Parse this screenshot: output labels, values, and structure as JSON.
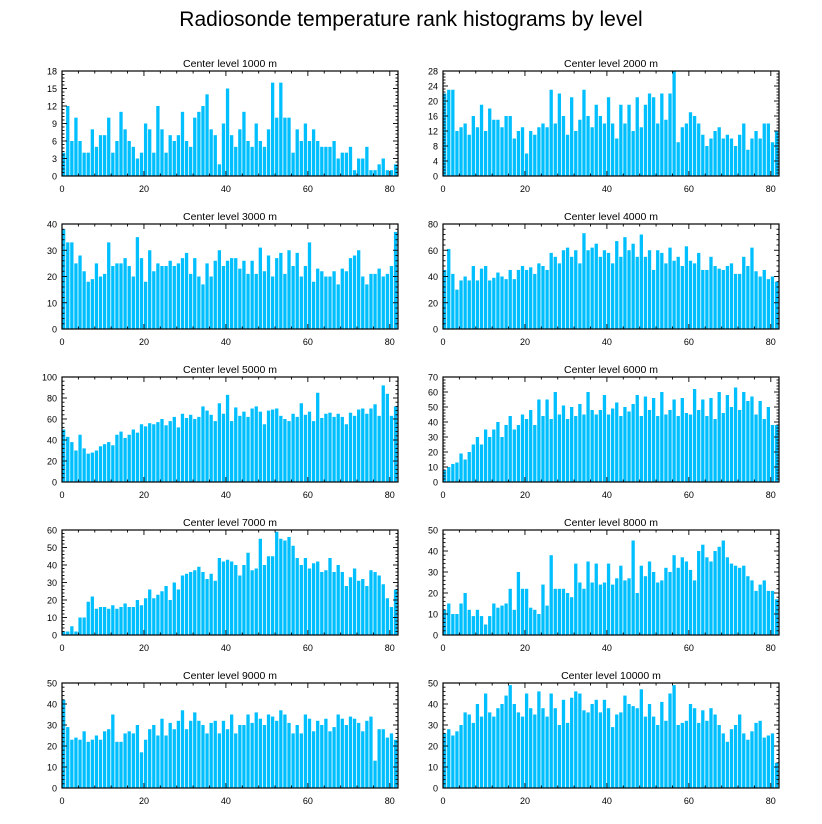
{
  "title": "Radiosonde temperature rank histograms by level",
  "bar_color": "#00bfff",
  "chart_data": [
    {
      "type": "bar",
      "title": "Center level 1000 m",
      "ylim": [
        0,
        18
      ],
      "yticks": [
        0,
        3,
        6,
        9,
        12,
        15,
        18
      ],
      "y_axis_side": "left",
      "xlim": [
        0,
        82
      ],
      "xticks": [
        0,
        20,
        40,
        60,
        80
      ],
      "values": [
        4,
        12,
        6,
        10,
        6,
        4,
        4,
        8,
        5,
        7,
        7,
        10,
        4,
        6,
        11,
        8,
        6,
        5,
        3,
        4,
        9,
        8,
        4,
        12,
        8,
        4,
        7,
        6,
        7,
        11,
        6,
        5,
        10,
        11,
        12,
        14,
        8,
        7,
        2,
        9,
        15,
        7,
        5,
        8,
        11,
        6,
        5,
        9,
        6,
        5,
        8,
        16,
        10,
        16,
        10,
        10,
        4,
        8,
        6,
        9,
        6,
        8,
        6,
        5,
        5,
        5,
        6,
        3,
        4,
        4,
        5,
        1,
        3,
        3,
        5,
        1,
        1,
        2,
        3,
        1,
        1,
        2
      ]
    },
    {
      "type": "bar",
      "title": "Center level 2000 m",
      "ylim": [
        0,
        28
      ],
      "yticks": [
        0,
        4,
        8,
        12,
        16,
        20,
        24,
        28
      ],
      "y_axis_side": "left",
      "xlim": [
        0,
        82
      ],
      "xticks": [
        0,
        20,
        40,
        60,
        80
      ],
      "values": [
        22,
        23,
        23,
        12,
        13,
        14,
        11,
        16,
        13,
        19,
        12,
        18,
        15,
        15,
        13,
        16,
        16,
        10,
        12,
        13,
        6,
        12,
        11,
        13,
        14,
        13,
        23,
        14,
        22,
        16,
        11,
        21,
        12,
        15,
        23,
        16,
        13,
        19,
        16,
        14,
        21,
        14,
        10,
        19,
        14,
        19,
        12,
        21,
        13,
        19,
        22,
        21,
        14,
        22,
        15,
        22,
        28,
        9,
        13,
        14,
        17,
        16,
        14,
        11,
        8,
        10,
        12,
        13,
        10,
        11,
        10,
        8,
        11,
        14,
        7,
        10,
        12,
        10,
        14,
        14,
        9,
        12
      ]
    },
    {
      "type": "bar",
      "title": "Center level 3000 m",
      "ylim": [
        0,
        40
      ],
      "yticks": [
        0,
        10,
        20,
        30,
        40
      ],
      "y_axis_side": "left",
      "xlim": [
        0,
        82
      ],
      "xticks": [
        0,
        20,
        40,
        60,
        80
      ],
      "values": [
        38,
        33,
        33,
        25,
        28,
        22,
        18,
        19,
        25,
        20,
        21,
        33,
        24,
        25,
        25,
        27,
        24,
        20,
        35,
        27,
        18,
        30,
        22,
        25,
        24,
        24,
        26,
        24,
        25,
        27,
        29,
        21,
        27,
        20,
        17,
        25,
        20,
        26,
        30,
        24,
        26,
        27,
        27,
        23,
        26,
        21,
        26,
        21,
        31,
        22,
        28,
        20,
        27,
        29,
        21,
        30,
        24,
        29,
        20,
        24,
        33,
        18,
        23,
        22,
        20,
        20,
        22,
        17,
        23,
        22,
        27,
        28,
        30,
        20,
        17,
        21,
        21,
        23,
        20,
        21,
        24,
        37
      ]
    },
    {
      "type": "bar",
      "title": "Center level 4000 m",
      "ylim": [
        0,
        80
      ],
      "yticks": [
        0,
        20,
        40,
        60,
        80
      ],
      "y_axis_side": "left",
      "xlim": [
        0,
        82
      ],
      "xticks": [
        0,
        20,
        40,
        60,
        80
      ],
      "values": [
        45,
        61,
        42,
        30,
        37,
        40,
        37,
        48,
        37,
        46,
        48,
        37,
        39,
        43,
        40,
        38,
        45,
        38,
        45,
        48,
        45,
        47,
        42,
        50,
        48,
        45,
        58,
        55,
        50,
        60,
        62,
        55,
        60,
        50,
        73,
        60,
        62,
        65,
        55,
        60,
        58,
        50,
        67,
        55,
        70,
        60,
        65,
        55,
        72,
        55,
        60,
        45,
        60,
        58,
        50,
        62,
        52,
        55,
        48,
        63,
        52,
        50,
        58,
        45,
        45,
        55,
        48,
        46,
        45,
        48,
        50,
        42,
        42,
        55,
        48,
        62,
        44,
        40,
        45,
        38,
        40,
        36
      ]
    },
    {
      "type": "bar",
      "title": "Center level 5000 m",
      "ylim": [
        0,
        100
      ],
      "yticks": [
        0,
        20,
        40,
        60,
        80,
        100
      ],
      "y_axis_side": "left",
      "xlim": [
        0,
        82
      ],
      "xticks": [
        0,
        20,
        40,
        60,
        80
      ],
      "values": [
        50,
        43,
        38,
        30,
        45,
        32,
        27,
        28,
        30,
        34,
        36,
        38,
        35,
        45,
        48,
        42,
        45,
        50,
        47,
        55,
        53,
        56,
        55,
        57,
        60,
        54,
        58,
        62,
        52,
        65,
        61,
        64,
        60,
        62,
        72,
        68,
        64,
        58,
        75,
        65,
        83,
        58,
        71,
        63,
        67,
        62,
        70,
        72,
        67,
        55,
        68,
        69,
        70,
        63,
        60,
        58,
        65,
        62,
        75,
        64,
        67,
        58,
        85,
        61,
        65,
        66,
        62,
        65,
        62,
        55,
        66,
        63,
        69,
        70,
        65,
        70,
        74,
        63,
        92,
        84,
        63,
        72
      ]
    },
    {
      "type": "bar",
      "title": "Center level 6000 m",
      "ylim": [
        0,
        70
      ],
      "yticks": [
        0,
        10,
        20,
        30,
        40,
        50,
        60,
        70
      ],
      "y_axis_side": "left",
      "xlim": [
        0,
        82
      ],
      "xticks": [
        0,
        20,
        40,
        60,
        80
      ],
      "values": [
        8,
        10,
        12,
        13,
        19,
        15,
        20,
        25,
        30,
        25,
        35,
        30,
        35,
        40,
        30,
        38,
        44,
        35,
        38,
        45,
        42,
        48,
        38,
        55,
        44,
        55,
        42,
        60,
        45,
        51,
        42,
        50,
        44,
        52,
        45,
        60,
        48,
        45,
        48,
        58,
        45,
        49,
        53,
        44,
        50,
        47,
        52,
        58,
        44,
        57,
        48,
        56,
        44,
        60,
        45,
        48,
        55,
        44,
        56,
        46,
        45,
        62,
        48,
        55,
        44,
        56,
        42,
        60,
        46,
        58,
        50,
        63,
        48,
        60,
        54,
        57,
        45,
        54,
        42,
        50,
        38,
        38
      ]
    },
    {
      "type": "bar",
      "title": "Center level 7000 m",
      "ylim": [
        0,
        60
      ],
      "yticks": [
        0,
        10,
        20,
        30,
        40,
        50,
        60
      ],
      "y_axis_side": "left",
      "xlim": [
        0,
        82
      ],
      "xticks": [
        0,
        20,
        40,
        60,
        80
      ],
      "values": [
        2,
        2,
        5,
        2,
        10,
        10,
        19,
        22,
        15,
        16,
        16,
        15,
        17,
        15,
        16,
        18,
        16,
        16,
        20,
        17,
        21,
        26,
        21,
        23,
        25,
        28,
        20,
        30,
        26,
        34,
        35,
        36,
        37,
        39,
        36,
        32,
        35,
        31,
        44,
        42,
        43,
        42,
        40,
        34,
        40,
        47,
        37,
        38,
        55,
        40,
        45,
        45,
        59,
        55,
        54,
        56,
        51,
        44,
        40,
        44,
        38,
        41,
        42,
        36,
        37,
        44,
        36,
        40,
        36,
        28,
        33,
        38,
        31,
        32,
        28,
        37,
        36,
        34,
        29,
        21,
        16,
        26
      ]
    },
    {
      "type": "bar",
      "title": "Center level 8000 m",
      "ylim": [
        0,
        50
      ],
      "yticks": [
        0,
        10,
        20,
        30,
        40,
        50
      ],
      "y_axis_side": "left",
      "xlim": [
        0,
        82
      ],
      "xticks": [
        0,
        20,
        40,
        60,
        80
      ],
      "values": [
        12,
        15,
        10,
        10,
        15,
        20,
        12,
        9,
        12,
        9,
        5,
        9,
        15,
        13,
        14,
        15,
        22,
        12,
        30,
        22,
        22,
        13,
        12,
        10,
        24,
        14,
        38,
        22,
        22,
        22,
        20,
        18,
        34,
        25,
        22,
        35,
        25,
        34,
        24,
        25,
        34,
        24,
        27,
        33,
        26,
        27,
        45,
        20,
        33,
        28,
        35,
        30,
        25,
        26,
        32,
        30,
        38,
        32,
        37,
        35,
        31,
        26,
        40,
        43,
        37,
        35,
        40,
        42,
        45,
        37,
        34,
        33,
        32,
        33,
        28,
        26,
        21,
        24,
        26,
        21,
        21,
        17
      ]
    },
    {
      "type": "bar",
      "title": "Center level 9000 m",
      "ylim": [
        0,
        50
      ],
      "yticks": [
        0,
        10,
        20,
        30,
        40,
        50
      ],
      "y_axis_side": "left",
      "xlim": [
        0,
        82
      ],
      "xticks": [
        0,
        20,
        40,
        60,
        80
      ],
      "values": [
        42,
        29,
        23,
        24,
        23,
        27,
        22,
        23,
        25,
        23,
        27,
        28,
        35,
        22,
        22,
        26,
        27,
        26,
        30,
        17,
        23,
        28,
        30,
        25,
        33,
        25,
        31,
        28,
        32,
        37,
        28,
        32,
        36,
        32,
        30,
        26,
        31,
        32,
        26,
        32,
        28,
        35,
        26,
        30,
        30,
        35,
        31,
        36,
        33,
        30,
        35,
        34,
        32,
        37,
        35,
        31,
        26,
        30,
        26,
        35,
        33,
        27,
        32,
        30,
        33,
        27,
        29,
        35,
        33,
        30,
        34,
        33,
        31,
        27,
        32,
        34,
        13,
        28,
        28,
        24,
        26,
        23
      ]
    },
    {
      "type": "bar",
      "title": "Center level 10000 m",
      "ylim": [
        0,
        50
      ],
      "yticks": [
        0,
        10,
        20,
        30,
        40,
        50
      ],
      "y_axis_side": "left",
      "xlim": [
        0,
        82
      ],
      "xticks": [
        0,
        20,
        40,
        60,
        80
      ],
      "values": [
        26,
        28,
        25,
        27,
        30,
        36,
        35,
        31,
        40,
        34,
        45,
        36,
        34,
        38,
        40,
        44,
        49,
        40,
        36,
        34,
        45,
        38,
        35,
        46,
        38,
        34,
        45,
        38,
        30,
        42,
        31,
        43,
        46,
        45,
        37,
        36,
        40,
        42,
        36,
        42,
        38,
        29,
        35,
        36,
        44,
        40,
        39,
        38,
        47,
        34,
        40,
        34,
        30,
        41,
        32,
        45,
        49,
        30,
        31,
        32,
        40,
        38,
        31,
        37,
        32,
        38,
        35,
        30,
        26,
        22,
        28,
        30,
        35,
        26,
        23,
        27,
        31,
        32,
        24,
        25,
        26,
        12
      ]
    }
  ]
}
